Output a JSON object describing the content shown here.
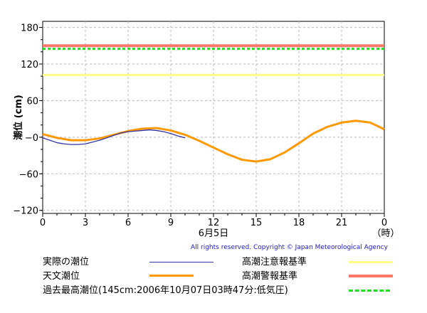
{
  "chart_data": {
    "type": "line",
    "ylabel": "潮位 (cm)",
    "ylim": [
      -125,
      190
    ],
    "xlim": [
      0,
      24
    ],
    "x_ticks": [
      "0",
      "3",
      "6",
      "9",
      "12",
      "15",
      "18",
      "21",
      "0"
    ],
    "x_tick_values": [
      0,
      3,
      6,
      9,
      12,
      15,
      18,
      21,
      24
    ],
    "x_unit": "（時）",
    "date_label": "6月5日",
    "y_ticks": [
      "180",
      "120",
      "60",
      "−0",
      "−60",
      "−120"
    ],
    "y_tick_values": [
      180,
      120,
      60,
      0,
      -60,
      -120
    ],
    "grid": true,
    "series": [
      {
        "name": "天文潮位",
        "color": "#ff9900",
        "x": [
          0,
          1,
          2,
          3,
          4,
          5,
          6,
          7,
          8,
          9,
          10,
          11,
          12,
          13,
          14,
          15,
          16,
          17,
          18,
          19,
          20,
          21,
          22,
          23,
          24
        ],
        "y": [
          5,
          -1,
          -5,
          -5,
          -2,
          4,
          10,
          14,
          15,
          11,
          4,
          -6,
          -17,
          -28,
          -37,
          -40,
          -36,
          -25,
          -10,
          6,
          17,
          24,
          27,
          24,
          13
        ]
      },
      {
        "name": "実際の潮位",
        "color": "#3333aa",
        "x": [
          0,
          0.5,
          1,
          1.5,
          2,
          2.5,
          3,
          3.5,
          4,
          4.5,
          5,
          5.5,
          6,
          6.5,
          7,
          7.5,
          8,
          8.5,
          9,
          9.5,
          10
        ],
        "y": [
          -1,
          -5,
          -9,
          -11,
          -12,
          -12,
          -11,
          -8,
          -5,
          -1,
          3,
          7,
          9,
          10,
          11,
          12,
          11,
          9,
          6,
          2,
          -1
        ]
      }
    ],
    "thresholds": [
      {
        "name": "高潮警報基準",
        "value": 150,
        "color": "#ff7766"
      },
      {
        "name": "過去最高潮位(145cm:2006年10月07日03時47分:低気圧)",
        "value": 145,
        "color": "#22dd22"
      },
      {
        "name": "高潮注意報基準",
        "value": 102,
        "color": "#ffff88"
      }
    ]
  },
  "copyright": "All rights reserved. Copyright © Japan Meteorological Agency",
  "legend": {
    "actual": "実際の潮位",
    "astronomical": "天文潮位",
    "record": "過去最高潮位(145cm:2006年10月07日03時47分:低気圧)",
    "advisory": "高潮注意報基準",
    "warning": "高潮警報基準"
  }
}
